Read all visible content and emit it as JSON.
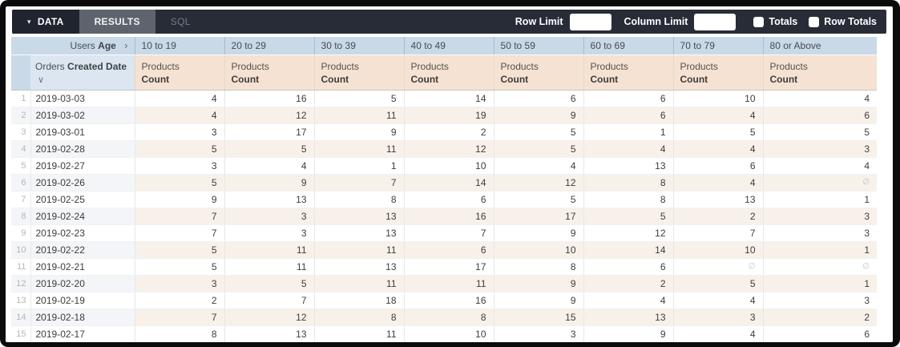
{
  "toolbar": {
    "tabs": {
      "data": "DATA",
      "results": "RESULTS",
      "sql": "SQL"
    },
    "row_limit_label": "Row Limit",
    "row_limit_value": "",
    "column_limit_label": "Column Limit",
    "column_limit_value": "",
    "totals_label": "Totals",
    "totals_checked": false,
    "row_totals_label": "Row Totals",
    "row_totals_checked": false
  },
  "icons": {
    "caret_down": "▾",
    "chevron_right": "›",
    "sort_down": "∨",
    "null_symbol": "∅"
  },
  "colors": {
    "toolbar_bg": "#272c37",
    "data_tab_bg": "#20242e",
    "results_tab_bg": "#5e646e",
    "pivot_header_bg": "#c9d9e8",
    "row_dim_header_bg": "#dbe6f1",
    "measure_header_bg": "#f5e2d2",
    "alt_row_value_bg": "#f8f1ea",
    "alt_row_date_bg": "#f3f5f8"
  },
  "table": {
    "pivot": {
      "dim_regular": "Users",
      "dim_bold": "Age",
      "values": [
        "10 to 19",
        "20 to 29",
        "30 to 39",
        "40 to 49",
        "50 to 59",
        "60 to 69",
        "70 to 79",
        "80 or Above"
      ]
    },
    "row_dim": {
      "regular": "Orders",
      "bold": "Created Date"
    },
    "measure": {
      "line1": "Products",
      "line2": "Count"
    },
    "rows": [
      {
        "num": "1",
        "date": "2019-03-03",
        "values": [
          "4",
          "16",
          "5",
          "14",
          "6",
          "6",
          "10",
          "4"
        ]
      },
      {
        "num": "2",
        "date": "2019-03-02",
        "values": [
          "4",
          "12",
          "11",
          "19",
          "9",
          "6",
          "4",
          "6"
        ]
      },
      {
        "num": "3",
        "date": "2019-03-01",
        "values": [
          "3",
          "17",
          "9",
          "2",
          "5",
          "1",
          "5",
          "5"
        ]
      },
      {
        "num": "4",
        "date": "2019-02-28",
        "values": [
          "5",
          "5",
          "11",
          "12",
          "5",
          "4",
          "4",
          "3"
        ]
      },
      {
        "num": "5",
        "date": "2019-02-27",
        "values": [
          "3",
          "4",
          "1",
          "10",
          "4",
          "13",
          "6",
          "4"
        ]
      },
      {
        "num": "6",
        "date": "2019-02-26",
        "values": [
          "5",
          "9",
          "7",
          "14",
          "12",
          "8",
          "4",
          "∅"
        ]
      },
      {
        "num": "7",
        "date": "2019-02-25",
        "values": [
          "9",
          "13",
          "8",
          "6",
          "5",
          "8",
          "13",
          "1"
        ]
      },
      {
        "num": "8",
        "date": "2019-02-24",
        "values": [
          "7",
          "3",
          "13",
          "16",
          "17",
          "5",
          "2",
          "3"
        ]
      },
      {
        "num": "9",
        "date": "2019-02-23",
        "values": [
          "7",
          "3",
          "13",
          "7",
          "9",
          "12",
          "7",
          "3"
        ]
      },
      {
        "num": "10",
        "date": "2019-02-22",
        "values": [
          "5",
          "11",
          "11",
          "6",
          "10",
          "14",
          "10",
          "1"
        ]
      },
      {
        "num": "11",
        "date": "2019-02-21",
        "values": [
          "5",
          "11",
          "13",
          "17",
          "8",
          "6",
          "∅",
          "∅"
        ]
      },
      {
        "num": "12",
        "date": "2019-02-20",
        "values": [
          "3",
          "5",
          "11",
          "11",
          "9",
          "2",
          "5",
          "1"
        ]
      },
      {
        "num": "13",
        "date": "2019-02-19",
        "values": [
          "2",
          "7",
          "18",
          "16",
          "9",
          "4",
          "4",
          "3"
        ]
      },
      {
        "num": "14",
        "date": "2019-02-18",
        "values": [
          "7",
          "12",
          "8",
          "8",
          "15",
          "13",
          "3",
          "2"
        ]
      },
      {
        "num": "15",
        "date": "2019-02-17",
        "values": [
          "8",
          "13",
          "11",
          "10",
          "3",
          "9",
          "4",
          "6"
        ]
      }
    ]
  }
}
